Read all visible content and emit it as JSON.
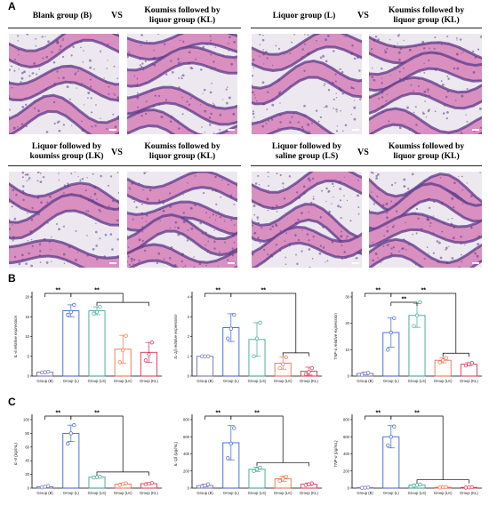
{
  "panel_labels": {
    "a": "A",
    "b": "B",
    "c": "C"
  },
  "histology": {
    "vs": "VS",
    "captions": [
      "Blank group (B)",
      "Koumiss followed by\nliquor group (KL)",
      "Liquor group (L)",
      "Koumiss followed by\nliquor group (KL)",
      "Liquor followed by\nkoumiss group (LK)",
      "Koumiss followed by\nliquor group (KL)",
      "Liquor followed by\nsaline group (LS)",
      "Koumiss followed by\nliquor group (KL)"
    ]
  },
  "colors": {
    "B": "#6f6fb8",
    "L": "#3a62d8",
    "LS": "#3aa597",
    "LK": "#f07048",
    "KL": "#e03050",
    "tissue_pink": "#d98fc0",
    "tissue_purple": "#5a3a8a",
    "background_light": "#ede8ef"
  },
  "chart_data": [
    {
      "type": "bar",
      "panel": "B",
      "categories": [
        "Group (B)",
        "Group (L)",
        "Group (LS)",
        "Group (LK)",
        "Group (KL)"
      ],
      "ylabel": "IL-6 relative expression",
      "ylim": [
        0,
        20
      ],
      "yticks": [
        0,
        5,
        10,
        15,
        20
      ],
      "values": [
        1.0,
        16.5,
        16.5,
        6.8,
        6.0
      ],
      "errors": [
        0.2,
        1.5,
        1.0,
        3.5,
        2.5
      ],
      "points": [
        [
          0.9,
          1.0,
          1.1
        ],
        [
          15.5,
          16.2,
          18.0
        ],
        [
          15.8,
          16.2,
          17.5
        ],
        [
          3.5,
          6.5,
          10.2
        ],
        [
          4.0,
          5.5,
          8.5
        ]
      ],
      "significance": [
        {
          "from": 0,
          "to": 1,
          "label": "**"
        },
        {
          "from": 1,
          "to_group": [
            2,
            4
          ],
          "label": "**"
        }
      ]
    },
    {
      "type": "bar",
      "panel": "B",
      "categories": [
        "Group (B)",
        "Group (L)",
        "Group (LS)",
        "Group (LK)",
        "Group (KL)"
      ],
      "ylabel": "IL-1β relative expression",
      "ylim": [
        0,
        4
      ],
      "yticks": [
        0,
        1,
        2,
        3,
        4
      ],
      "values": [
        1.0,
        2.45,
        1.85,
        0.65,
        0.25
      ],
      "errors": [
        0.05,
        0.7,
        0.85,
        0.3,
        0.2
      ],
      "points": [
        [
          1.0,
          1.0,
          1.0
        ],
        [
          1.9,
          2.4,
          3.1
        ],
        [
          1.0,
          1.9,
          2.7
        ],
        [
          0.4,
          0.6,
          0.95
        ],
        [
          0.1,
          0.2,
          0.4
        ]
      ],
      "significance": [
        {
          "from": 0,
          "to": 1,
          "label": "**"
        },
        {
          "from": 1,
          "to_group": [
            3,
            4
          ],
          "label": "**"
        }
      ]
    },
    {
      "type": "bar",
      "panel": "B",
      "categories": [
        "Group (B)",
        "Group (L)",
        "Group (LS)",
        "Group (LK)",
        "Group (KL)"
      ],
      "ylabel": "TNF-α relative expression",
      "ylim": [
        0,
        30
      ],
      "yticks": [
        0,
        10,
        20,
        30
      ],
      "values": [
        1.0,
        16.5,
        23.0,
        6.0,
        4.5
      ],
      "errors": [
        0.5,
        5.5,
        4.5,
        1.0,
        0.6
      ],
      "points": [
        [
          0.5,
          1.0,
          1.2
        ],
        [
          10.0,
          16.5,
          22.0
        ],
        [
          19.0,
          23.0,
          28.0
        ],
        [
          5.2,
          6.0,
          6.8
        ],
        [
          4.0,
          4.5,
          5.0
        ]
      ],
      "significance": [
        {
          "from": 0,
          "to": 1,
          "label": "**"
        },
        {
          "from": 1,
          "to": 2,
          "label": "**"
        },
        {
          "from": 1,
          "to_group": [
            3,
            4
          ],
          "label": "**"
        }
      ]
    },
    {
      "type": "bar",
      "panel": "C",
      "categories": [
        "Group (B)",
        "Group (L)",
        "Group (LS)",
        "Group (LK)",
        "Group (KL)"
      ],
      "ylabel": "IL-6 (pg/mL)",
      "ylim": [
        0,
        100
      ],
      "yticks": [
        0,
        20,
        40,
        60,
        80,
        100
      ],
      "values": [
        2.0,
        80.0,
        16.0,
        6.0,
        6.5
      ],
      "errors": [
        1.0,
        12.0,
        1.0,
        1.5,
        1.5
      ],
      "points": [
        [
          1.0,
          2.0,
          3.0
        ],
        [
          65.0,
          80.0,
          92.0
        ],
        [
          15.5,
          16.0,
          16.5
        ],
        [
          4.5,
          6.0,
          7.0
        ],
        [
          5.5,
          6.5,
          7.5
        ]
      ],
      "significance": [
        {
          "from": 0,
          "to": 1,
          "label": "**"
        },
        {
          "from": 1,
          "to_group": [
            2,
            4
          ],
          "label": "**"
        }
      ]
    },
    {
      "type": "bar",
      "panel": "C",
      "categories": [
        "Group (B)",
        "Group (L)",
        "Group (LS)",
        "Group (LK)",
        "Group (KL)"
      ],
      "ylabel": "IL-1β (pg/mL)",
      "ylim": [
        0,
        800
      ],
      "yticks": [
        0,
        200,
        400,
        600,
        800
      ],
      "values": [
        30,
        530,
        220,
        110,
        45
      ],
      "errors": [
        15,
        200,
        25,
        30,
        15
      ],
      "points": [
        [
          20,
          30,
          45
        ],
        [
          350,
          520,
          700
        ],
        [
          200,
          220,
          240
        ],
        [
          85,
          110,
          135
        ],
        [
          35,
          45,
          55
        ]
      ],
      "significance": [
        {
          "from": 0,
          "to": 1,
          "label": "**"
        },
        {
          "from": 1,
          "to_group": [
            2,
            4
          ],
          "label": "**"
        }
      ]
    },
    {
      "type": "bar",
      "panel": "C",
      "categories": [
        "Group (B)",
        "Group (L)",
        "Group (LS)",
        "Group (LK)",
        "Group (KL)"
      ],
      "ylabel": "TNF-α (pg/mL)",
      "ylim": [
        0,
        800
      ],
      "yticks": [
        0,
        200,
        400,
        600,
        800
      ],
      "values": [
        5,
        600,
        35,
        10,
        8
      ],
      "errors": [
        3,
        130,
        10,
        5,
        3
      ],
      "points": [
        [
          3,
          5,
          7
        ],
        [
          500,
          600,
          720
        ],
        [
          28,
          35,
          42
        ],
        [
          7,
          10,
          14
        ],
        [
          6,
          8,
          10
        ]
      ],
      "significance": [
        {
          "from": 0,
          "to": 1,
          "label": "**"
        },
        {
          "from": 1,
          "to_group": [
            2,
            4
          ],
          "label": "**"
        }
      ]
    }
  ]
}
